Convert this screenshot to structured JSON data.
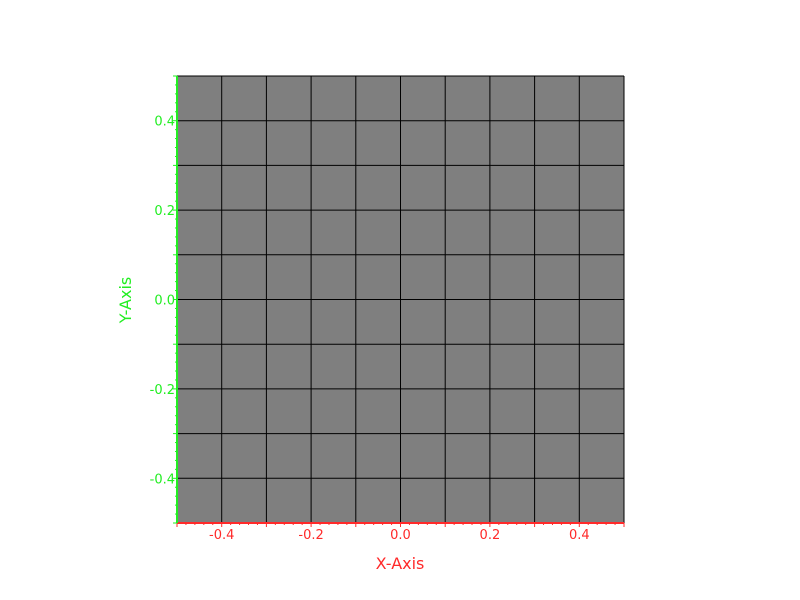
{
  "chart_data": {
    "type": "heatmap",
    "xlabel": "X-Axis",
    "ylabel": "Y-Axis",
    "xlim": [
      -0.5,
      0.5
    ],
    "ylim": [
      -0.5,
      0.5
    ],
    "x_ticks": [
      "-0.4",
      "-0.2",
      "0.0",
      "0.2",
      "0.4"
    ],
    "y_ticks": [
      "0.4",
      "0.2",
      "0.0",
      "-0.2",
      "-0.4"
    ],
    "x_tick_values": [
      -0.4,
      -0.2,
      0.0,
      0.2,
      0.4
    ],
    "y_tick_values": [
      0.4,
      0.2,
      0.0,
      -0.2,
      -0.4
    ],
    "grid": true,
    "grid_divisions": 10,
    "plane_color": "#7f7f7f",
    "grid_color": "#000000",
    "x_axis_color": "#ff2a2a",
    "y_axis_color": "#22ee22"
  }
}
